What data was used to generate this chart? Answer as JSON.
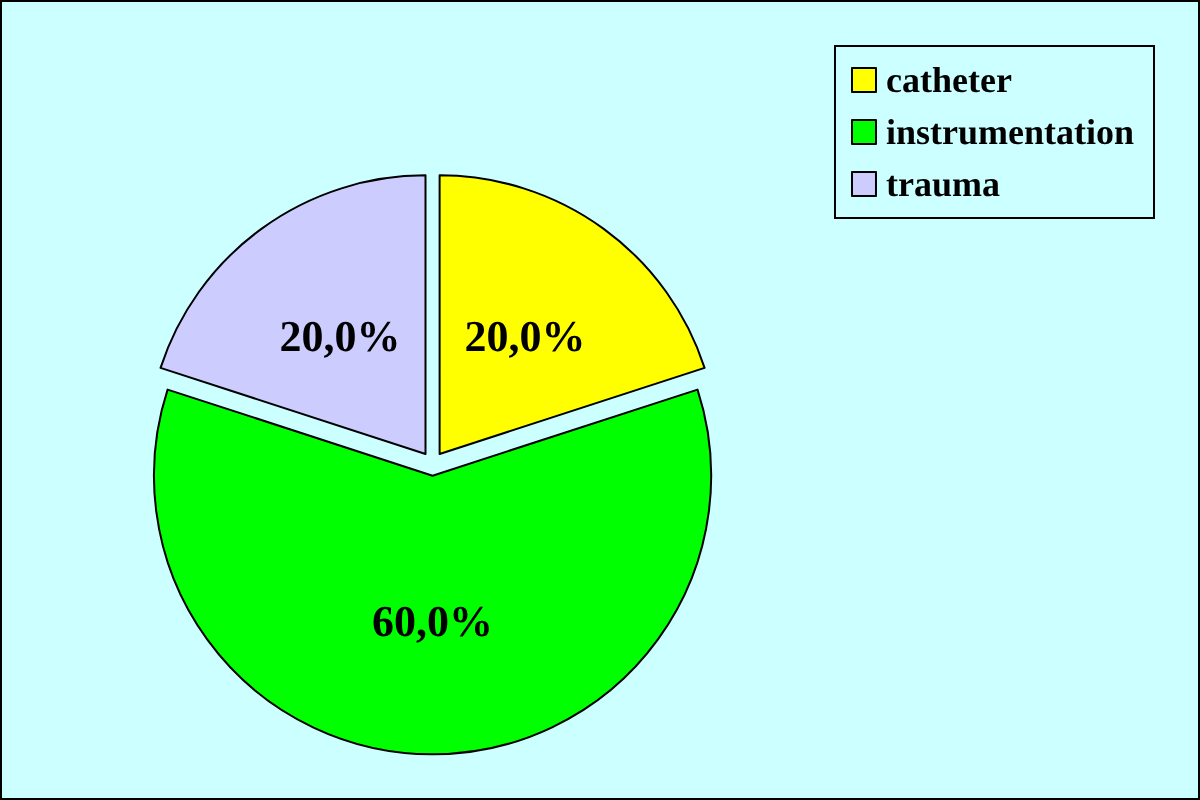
{
  "chart_data": {
    "type": "pie",
    "categories": [
      "catheter",
      "instrumentation",
      "trauma"
    ],
    "values": [
      20,
      60,
      20
    ],
    "colors": [
      "#ffff00",
      "#00ff00",
      "#ccccff"
    ],
    "value_labels": [
      "20,0%",
      "60,0%",
      "20,0%"
    ],
    "legend": "top right"
  }
}
